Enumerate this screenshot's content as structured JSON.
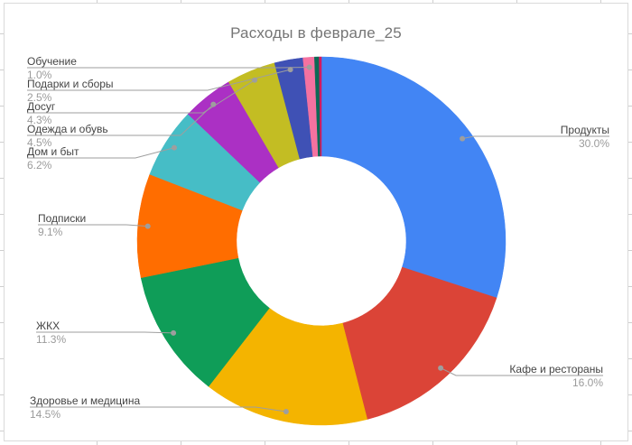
{
  "chart_data": {
    "type": "pie",
    "title": "Расходы в феврале_25",
    "donut": true,
    "hole_ratio": 0.46,
    "legend_position": "labeled-callouts",
    "slices": [
      {
        "label": "Продукты",
        "value": 30.0,
        "percent_label": "30.0%",
        "color": "#4285F4"
      },
      {
        "label": "Кафе и рестораны",
        "value": 16.0,
        "percent_label": "16.0%",
        "color": "#DB4437"
      },
      {
        "label": "Здоровье и медицина",
        "value": 14.5,
        "percent_label": "14.5%",
        "color": "#F4B400"
      },
      {
        "label": "ЖКХ",
        "value": 11.3,
        "percent_label": "11.3%",
        "color": "#0F9D58"
      },
      {
        "label": "Подписки",
        "value": 9.1,
        "percent_label": "9.1%",
        "color": "#FF6D00"
      },
      {
        "label": "Дом и быт",
        "value": 6.2,
        "percent_label": "6.2%",
        "color": "#46BDC6"
      },
      {
        "label": "Одежда и обувь",
        "value": 4.5,
        "percent_label": "4.5%",
        "color": "#AB30C4"
      },
      {
        "label": "Досуг",
        "value": 4.3,
        "percent_label": "4.3%",
        "color": "#C3BD23"
      },
      {
        "label": "Подарки и сборы",
        "value": 2.5,
        "percent_label": "2.5%",
        "color": "#3F51B5"
      },
      {
        "label": "Обучение",
        "value": 1.0,
        "percent_label": "1.0%",
        "color": "#F472A0"
      },
      {
        "label": "",
        "value": 0.4,
        "percent_label": "",
        "color": "#0B6955"
      },
      {
        "label": "",
        "value": 0.2,
        "percent_label": "",
        "color": "#D31A5F"
      }
    ]
  },
  "colors": {
    "background": "#ffffff",
    "chart_border": "#dadada",
    "gridline_tick": "#cfcfcf",
    "title_text": "#757575",
    "label_text": "#444444",
    "percent_text": "#9b9b9b",
    "leader_line": "#9e9e9e"
  }
}
